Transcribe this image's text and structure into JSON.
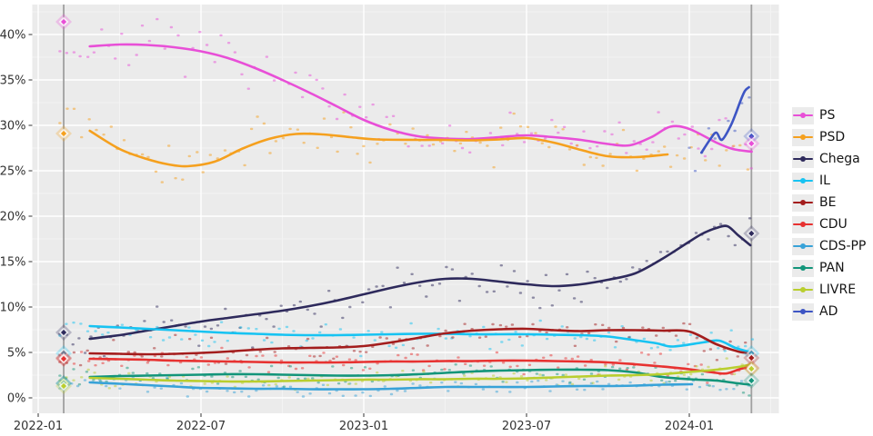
{
  "chart_data": {
    "type": "scatter",
    "title": "",
    "x_axis": {
      "tick_labels": [
        "2022-01",
        "2022-07",
        "2023-01",
        "2023-07",
        "2024-01"
      ],
      "tick_months": [
        0,
        6,
        12,
        18,
        24
      ],
      "minor_months": [
        3,
        9,
        15,
        21,
        27
      ]
    },
    "y_axis": {
      "tick_labels": [
        "0%",
        "5%",
        "10%",
        "15%",
        "20%",
        "25%",
        "30%",
        "35%",
        "40%"
      ],
      "tick_values": [
        0,
        5,
        10,
        15,
        20,
        25,
        30,
        35,
        40
      ],
      "minor_values": [
        2.5,
        7.5,
        12.5,
        17.5,
        22.5,
        27.5,
        32.5,
        37.5,
        42.5
      ],
      "domain": [
        -1.7,
        43.3
      ]
    },
    "panel": {
      "background": "#ebebeb",
      "grid_major": "#ffffff",
      "grid_minor": "#f3f3f3"
    },
    "election_lines": {
      "color": "#a0a0a0",
      "months": [
        0.94,
        26.29
      ]
    },
    "elections": [
      {
        "id": "election-2022",
        "month": 0.94,
        "results": [
          {
            "party": "PS",
            "value": 41.4
          },
          {
            "party": "PSD",
            "value": 29.1
          },
          {
            "party": "Chega",
            "value": 7.2
          },
          {
            "party": "IL",
            "value": 4.9
          },
          {
            "party": "BE",
            "value": 4.4
          },
          {
            "party": "CDU",
            "value": 4.3
          },
          {
            "party": "CDS-PP",
            "value": 1.6
          },
          {
            "party": "PAN",
            "value": 1.6
          },
          {
            "party": "LIVRE",
            "value": 1.3
          }
        ]
      },
      {
        "id": "election-2024",
        "month": 26.29,
        "results": [
          {
            "party": "AD",
            "value": 28.8
          },
          {
            "party": "PS",
            "value": 28.0
          },
          {
            "party": "Chega",
            "value": 18.1
          },
          {
            "party": "IL",
            "value": 4.9
          },
          {
            "party": "BE",
            "value": 4.4
          },
          {
            "party": "CDU",
            "value": 3.3
          },
          {
            "party": "LIVRE",
            "value": 3.2
          },
          {
            "party": "PAN",
            "value": 1.9
          }
        ]
      }
    ],
    "series": [
      {
        "name": "PS",
        "color": "#e84fd7",
        "sigma": 1.25,
        "scatter_from": 0.8,
        "points": [
          [
            1.9,
            38.7
          ],
          [
            3,
            38.9
          ],
          [
            4,
            38.85
          ],
          [
            5,
            38.6
          ],
          [
            6,
            38.15
          ],
          [
            7,
            37.4
          ],
          [
            8,
            36.3
          ],
          [
            9,
            35.0
          ],
          [
            10,
            33.6
          ],
          [
            11,
            32.1
          ],
          [
            12,
            30.6
          ],
          [
            13,
            29.5
          ],
          [
            14,
            28.8
          ],
          [
            15,
            28.55
          ],
          [
            16,
            28.5
          ],
          [
            17,
            28.7
          ],
          [
            18,
            28.9
          ],
          [
            19,
            28.7
          ],
          [
            20,
            28.4
          ],
          [
            21,
            27.95
          ],
          [
            21.8,
            27.8
          ],
          [
            22.6,
            28.7
          ],
          [
            23.3,
            29.85
          ],
          [
            24,
            29.6
          ],
          [
            25,
            28.1
          ],
          [
            25.6,
            27.4
          ],
          [
            26.3,
            27.1
          ]
        ]
      },
      {
        "name": "PSD",
        "color": "#f5a01e",
        "sigma": 1.25,
        "scatter_from": 0.8,
        "points": [
          [
            1.9,
            29.4
          ],
          [
            3,
            27.4
          ],
          [
            4,
            26.3
          ],
          [
            4.8,
            25.7
          ],
          [
            5.5,
            25.5
          ],
          [
            6.5,
            26.0
          ],
          [
            7.5,
            27.4
          ],
          [
            8.5,
            28.5
          ],
          [
            9.5,
            29.05
          ],
          [
            10.5,
            29.0
          ],
          [
            11.5,
            28.7
          ],
          [
            12.5,
            28.45
          ],
          [
            14,
            28.4
          ],
          [
            15,
            28.4
          ],
          [
            16,
            28.35
          ],
          [
            17,
            28.45
          ],
          [
            18,
            28.6
          ],
          [
            19,
            28.1
          ],
          [
            20,
            27.3
          ],
          [
            21,
            26.6
          ],
          [
            22,
            26.5
          ],
          [
            23.2,
            26.8
          ]
        ]
      },
      {
        "name": "Chega",
        "color": "#2e2a5c",
        "sigma": 1.35,
        "scatter_from": 0.8,
        "points": [
          [
            1.9,
            6.5
          ],
          [
            3,
            6.9
          ],
          [
            4,
            7.4
          ],
          [
            5,
            7.9
          ],
          [
            6,
            8.4
          ],
          [
            7,
            8.8
          ],
          [
            8,
            9.2
          ],
          [
            9,
            9.6
          ],
          [
            10,
            10.1
          ],
          [
            11,
            10.7
          ],
          [
            12,
            11.4
          ],
          [
            13,
            12.1
          ],
          [
            14,
            12.7
          ],
          [
            15,
            13.1
          ],
          [
            16,
            13.1
          ],
          [
            17,
            12.8
          ],
          [
            18,
            12.5
          ],
          [
            19,
            12.3
          ],
          [
            20,
            12.5
          ],
          [
            21,
            13.0
          ],
          [
            22,
            13.7
          ],
          [
            23,
            15.3
          ],
          [
            24,
            17.2
          ],
          [
            24.5,
            18.1
          ],
          [
            25,
            18.7
          ],
          [
            25.4,
            18.9
          ],
          [
            25.8,
            17.9
          ],
          [
            26.25,
            16.8
          ]
        ]
      },
      {
        "name": "IL",
        "color": "#17c3f2",
        "sigma": 0.8,
        "scatter_from": 0.8,
        "points": [
          [
            1.9,
            7.9
          ],
          [
            3,
            7.75
          ],
          [
            4,
            7.6
          ],
          [
            5,
            7.45
          ],
          [
            6,
            7.3
          ],
          [
            7,
            7.15
          ],
          [
            8,
            7.05
          ],
          [
            9,
            6.95
          ],
          [
            10,
            6.9
          ],
          [
            11,
            6.9
          ],
          [
            12,
            6.95
          ],
          [
            13,
            7.0
          ],
          [
            14,
            7.05
          ],
          [
            15,
            7.05
          ],
          [
            16,
            7.0
          ],
          [
            17,
            7.0
          ],
          [
            18,
            7.0
          ],
          [
            19,
            6.95
          ],
          [
            20,
            6.9
          ],
          [
            21,
            6.75
          ],
          [
            22,
            6.35
          ],
          [
            22.8,
            6.0
          ],
          [
            23.4,
            5.65
          ],
          [
            24.5,
            6.1
          ],
          [
            25.1,
            6.3
          ],
          [
            25.7,
            5.5
          ],
          [
            26.3,
            5.0
          ]
        ]
      },
      {
        "name": "BE",
        "color": "#a31d1d",
        "sigma": 0.75,
        "scatter_from": 0.8,
        "points": [
          [
            1.9,
            4.9
          ],
          [
            3,
            4.85
          ],
          [
            4,
            4.8
          ],
          [
            5,
            4.85
          ],
          [
            6,
            4.95
          ],
          [
            7,
            5.1
          ],
          [
            8,
            5.3
          ],
          [
            9,
            5.45
          ],
          [
            10,
            5.5
          ],
          [
            11,
            5.55
          ],
          [
            12,
            5.7
          ],
          [
            13,
            6.1
          ],
          [
            14,
            6.6
          ],
          [
            15,
            7.1
          ],
          [
            16,
            7.4
          ],
          [
            17,
            7.55
          ],
          [
            18,
            7.6
          ],
          [
            19,
            7.45
          ],
          [
            20,
            7.35
          ],
          [
            21,
            7.45
          ],
          [
            22,
            7.45
          ],
          [
            23,
            7.4
          ],
          [
            24,
            7.3
          ],
          [
            25,
            5.9
          ],
          [
            25.8,
            5.1
          ],
          [
            26.3,
            4.9
          ]
        ]
      },
      {
        "name": "CDU",
        "color": "#e73231",
        "sigma": 0.6,
        "scatter_from": 0.8,
        "points": [
          [
            1.9,
            4.3
          ],
          [
            3,
            4.25
          ],
          [
            4,
            4.2
          ],
          [
            5,
            4.1
          ],
          [
            6,
            4.05
          ],
          [
            7,
            4.0
          ],
          [
            8,
            3.95
          ],
          [
            9,
            3.9
          ],
          [
            10,
            3.9
          ],
          [
            11,
            3.9
          ],
          [
            12,
            3.95
          ],
          [
            13,
            4.0
          ],
          [
            14,
            4.0
          ],
          [
            15,
            4.05
          ],
          [
            16,
            4.05
          ],
          [
            17,
            4.1
          ],
          [
            18,
            4.1
          ],
          [
            19,
            4.05
          ],
          [
            20,
            4.0
          ],
          [
            21,
            3.9
          ],
          [
            22,
            3.7
          ],
          [
            23,
            3.45
          ],
          [
            24,
            3.15
          ],
          [
            25,
            2.75
          ],
          [
            25.4,
            2.7
          ],
          [
            25.9,
            3.2
          ],
          [
            26.3,
            3.35
          ]
        ]
      },
      {
        "name": "CDS-PP",
        "color": "#38a2d8",
        "sigma": 0.45,
        "scatter_from": 0.8,
        "points": [
          [
            1.9,
            1.7
          ],
          [
            3,
            1.55
          ],
          [
            4,
            1.4
          ],
          [
            5,
            1.25
          ],
          [
            6,
            1.1
          ],
          [
            7,
            1.05
          ],
          [
            8,
            1.0
          ],
          [
            9,
            1.0
          ],
          [
            10,
            0.95
          ],
          [
            11,
            0.95
          ],
          [
            12,
            0.95
          ],
          [
            13,
            1.0
          ],
          [
            14,
            1.1
          ],
          [
            15,
            1.2
          ],
          [
            16,
            1.2
          ],
          [
            17,
            1.2
          ],
          [
            18,
            1.2
          ],
          [
            19,
            1.25
          ],
          [
            20,
            1.3
          ],
          [
            21,
            1.3
          ],
          [
            22,
            1.35
          ],
          [
            23,
            1.45
          ],
          [
            24.1,
            1.5
          ]
        ]
      },
      {
        "name": "PAN",
        "color": "#13957a",
        "sigma": 0.6,
        "scatter_from": 0.8,
        "points": [
          [
            1.9,
            2.3
          ],
          [
            3,
            2.4
          ],
          [
            4,
            2.45
          ],
          [
            5,
            2.5
          ],
          [
            6,
            2.55
          ],
          [
            7,
            2.6
          ],
          [
            8,
            2.6
          ],
          [
            9,
            2.55
          ],
          [
            10,
            2.5
          ],
          [
            11,
            2.45
          ],
          [
            12,
            2.45
          ],
          [
            13,
            2.5
          ],
          [
            14,
            2.6
          ],
          [
            15,
            2.75
          ],
          [
            16,
            2.9
          ],
          [
            17,
            3.0
          ],
          [
            18,
            3.05
          ],
          [
            19,
            3.1
          ],
          [
            20,
            3.1
          ],
          [
            21,
            3.05
          ],
          [
            22,
            2.8
          ],
          [
            23,
            2.3
          ],
          [
            24,
            2.05
          ],
          [
            25,
            1.9
          ],
          [
            25.8,
            1.6
          ],
          [
            26.3,
            1.45
          ]
        ]
      },
      {
        "name": "LIVRE",
        "color": "#b9ce2f",
        "sigma": 0.55,
        "scatter_from": 0.8,
        "points": [
          [
            1.9,
            2.2
          ],
          [
            3,
            2.1
          ],
          [
            4,
            2.0
          ],
          [
            5,
            1.9
          ],
          [
            6,
            1.85
          ],
          [
            7,
            1.8
          ],
          [
            8,
            1.8
          ],
          [
            9,
            1.85
          ],
          [
            10,
            1.9
          ],
          [
            11,
            1.95
          ],
          [
            12,
            2.0
          ],
          [
            13,
            2.0
          ],
          [
            14,
            2.05
          ],
          [
            15,
            2.05
          ],
          [
            16,
            2.1
          ],
          [
            17,
            2.1
          ],
          [
            18,
            2.15
          ],
          [
            19,
            2.25
          ],
          [
            20,
            2.35
          ],
          [
            21,
            2.45
          ],
          [
            22,
            2.5
          ],
          [
            23,
            2.6
          ],
          [
            24,
            2.85
          ],
          [
            25,
            3.1
          ],
          [
            25.8,
            3.4
          ],
          [
            26.3,
            3.7
          ]
        ]
      },
      {
        "name": "AD",
        "color": "#3d55c4",
        "sigma": 1.5,
        "scatter_from": 24.0,
        "points": [
          [
            24.45,
            27.0
          ],
          [
            24.8,
            28.6
          ],
          [
            25.0,
            29.2
          ],
          [
            25.2,
            28.4
          ],
          [
            25.5,
            29.8
          ],
          [
            25.7,
            31.2
          ],
          [
            25.9,
            32.8
          ],
          [
            26.05,
            33.8
          ],
          [
            26.2,
            34.2
          ]
        ]
      }
    ],
    "legend": {
      "position": "right",
      "entries": [
        "PS",
        "PSD",
        "Chega",
        "IL",
        "BE",
        "CDU",
        "CDS-PP",
        "PAN",
        "LIVRE",
        "AD"
      ]
    },
    "scatter_style": {
      "step_months": 0.21,
      "opacity": 0.5,
      "seed": 7,
      "end_month": 26.38
    }
  }
}
